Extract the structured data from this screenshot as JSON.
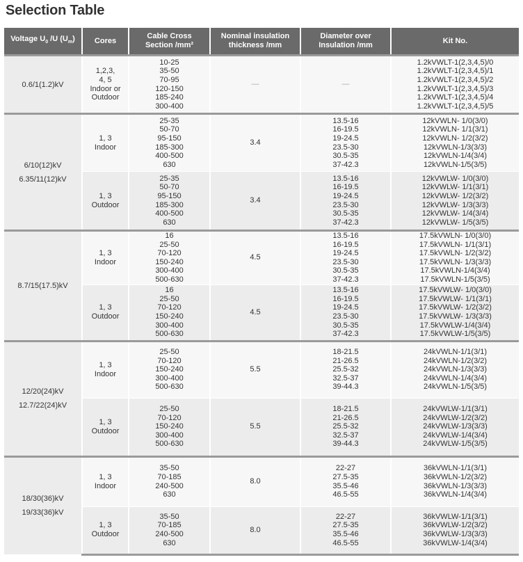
{
  "title": "Selection Table",
  "headers": {
    "voltage": {
      "a": "Voltage U",
      "s1": "0",
      "b": " /U (U",
      "s2": "m",
      "c": ")"
    },
    "cores": "Cores",
    "cross_section": [
      "Cable Cross",
      "Section /mm²"
    ],
    "insulation": [
      "Nominal insulation",
      "thickness /mm"
    ],
    "diameter": [
      "Diameter over",
      "Insulation /mm"
    ],
    "kit": "Kit No."
  },
  "groups": [
    {
      "voltage": [
        "0.6/1(1.2)kV"
      ],
      "rows": [
        {
          "cores": [
            "1,2,3,",
            "4, 5",
            "Indoor or",
            "Outdoor"
          ],
          "sections": [
            "10-25",
            "35-50",
            "70-95",
            "120-150",
            "185-240",
            "300-400"
          ],
          "insulation": "—",
          "diameter": [
            "—"
          ],
          "kits": [
            "1.2kVWLT-1(2,3,4,5)/0",
            "1.2kVWLT-1(2,3,4,5)/1",
            "1.2kVWLT-1(2,3,4,5)/2",
            "1.2kVWLT-1(2,3,4,5)/3",
            "1.2kVWLT-1(2,3,4,5)/4",
            "1.2kVWLT-1(2,3,4,5)/5"
          ]
        }
      ]
    },
    {
      "voltage": [
        "6/10(12)kV",
        "6.35/11(12)kV"
      ],
      "rows": [
        {
          "cores": [
            "1, 3",
            "Indoor"
          ],
          "sections": [
            "25-35",
            "50-70",
            "95-150",
            "185-300",
            "400-500",
            "630"
          ],
          "insulation": "3.4",
          "diameter": [
            "13.5-16",
            "16-19.5",
            "19-24.5",
            "23.5-30",
            "30.5-35",
            "37-42.3"
          ],
          "kits": [
            "12kVWLN- 1/0(3/0)",
            "12kVWLN- 1/1(3/1)",
            "12kVWLN- 1/2(3/2)",
            "12kVWLN-1/3(3/3)",
            "12kVWLN-1/4(3/4)",
            "12kVWLN-1/5(3/5)"
          ]
        },
        {
          "cores": [
            "1, 3",
            "Outdoor"
          ],
          "sections": [
            "25-35",
            "50-70",
            "95-150",
            "185-300",
            "400-500",
            "630"
          ],
          "insulation": "3.4",
          "diameter": [
            "13.5-16",
            "16-19.5",
            "19-24.5",
            "23.5-30",
            "30.5-35",
            "37-42.3"
          ],
          "kits": [
            "12kVWLW- 1/0(3/0)",
            "12kVWLW- 1/1(3/1)",
            "12kVWLW- 1/2(3/2)",
            "12kVWLW- 1/3(3/3)",
            "12kVWLW- 1/4(3/4)",
            "12kVWLW- 1/5(3/5)"
          ]
        }
      ]
    },
    {
      "voltage": [
        "8.7/15(17.5)kV"
      ],
      "rows": [
        {
          "cores": [
            "1, 3",
            "Indoor"
          ],
          "sections": [
            "16",
            "25-50",
            "70-120",
            "150-240",
            "300-400",
            "500-630"
          ],
          "insulation": "4.5",
          "diameter": [
            "13.5-16",
            "16-19.5",
            "19-24.5",
            "23.5-30",
            "30.5-35",
            "37-42.3"
          ],
          "kits": [
            "17.5kVWLN- 1/0(3/0)",
            "17.5kVWLN- 1/1(3/1)",
            "17.5kVWLN- 1/2(3/2)",
            "17.5kVWLN- 1/3(3/3)",
            "17.5kVWLN-1/4(3/4)",
            "17.5kVWLN-1/5(3/5)"
          ]
        },
        {
          "cores": [
            "1, 3",
            "Outdoor"
          ],
          "sections": [
            "16",
            "25-50",
            "70-120",
            "150-240",
            "300-400",
            "500-630"
          ],
          "insulation": "4.5",
          "diameter": [
            "13.5-16",
            "16-19.5",
            "19-24.5",
            "23.5-30",
            "30.5-35",
            "37-42.3"
          ],
          "kits": [
            "17.5kVWLW- 1/0(3/0)",
            "17.5kVWLW- 1/1(3/1)",
            "17.5kVWLW- 1/2(3/2)",
            "17.5kVWLW- 1/3(3/3)",
            "17.5kVWLW-1/4(3/4)",
            "17.5kVWLW-1/5(3/5)"
          ]
        }
      ]
    },
    {
      "voltage": [
        "12/20(24)kV",
        "12.7/22(24)kV"
      ],
      "rows": [
        {
          "cores": [
            "1, 3",
            "Indoor"
          ],
          "sections": [
            "25-50",
            "70-120",
            "150-240",
            "300-400",
            "500-630"
          ],
          "insulation": "5.5",
          "diameter": [
            "18-21.5",
            "21-26.5",
            "25.5-32",
            "32.5-37",
            "39-44.3"
          ],
          "kits": [
            "24kVWLN-1/1(3/1)",
            "24kVWLN-1/2(3/2)",
            "24kVWLN-1/3(3/3)",
            "24kVWLN-1/4(3/4)",
            "24kVWLN-1/5(3/5)"
          ]
        },
        {
          "cores": [
            "1, 3",
            "Outdoor"
          ],
          "sections": [
            "25-50",
            "70-120",
            "150-240",
            "300-400",
            "500-630"
          ],
          "insulation": "5.5",
          "diameter": [
            "18-21.5",
            "21-26.5",
            "25.5-32",
            "32.5-37",
            "39-44.3"
          ],
          "kits": [
            "24kVWLW-1/1(3/1)",
            "24kVWLW-1/2(3/2)",
            "24kVWLW-1/3(3/3)",
            "24kVWLW-1/4(3/4)",
            "24kVWLW-1/5(3/5)"
          ]
        }
      ]
    },
    {
      "voltage": [
        "18/30(36)kV",
        "19/33(36)kV"
      ],
      "rows": [
        {
          "cores": [
            "1, 3",
            "Indoor"
          ],
          "sections": [
            "35-50",
            "70-185",
            "240-500",
            "630"
          ],
          "insulation": "8.0",
          "diameter": [
            "22-27",
            "27.5-35",
            "35.5-46",
            "46.5-55"
          ],
          "kits": [
            "36kVWLN-1/1(3/1)",
            "36kVWLN-1/2(3/2)",
            "36kVWLN-1/3(3/3)",
            "36kVWLN-1/4(3/4)"
          ]
        },
        {
          "cores": [
            "1, 3",
            "Outdoor"
          ],
          "sections": [
            "35-50",
            "70-185",
            "240-500",
            "630"
          ],
          "insulation": "8.0",
          "diameter": [
            "22-27",
            "27.5-35",
            "35.5-46",
            "46.5-55"
          ],
          "kits": [
            "36kVWLW-1/1(3/1)",
            "36kVWLW-1/2(3/2)",
            "36kVWLW-1/3(3/3)",
            "36kVWLW-1/4(3/4)"
          ]
        }
      ]
    }
  ]
}
